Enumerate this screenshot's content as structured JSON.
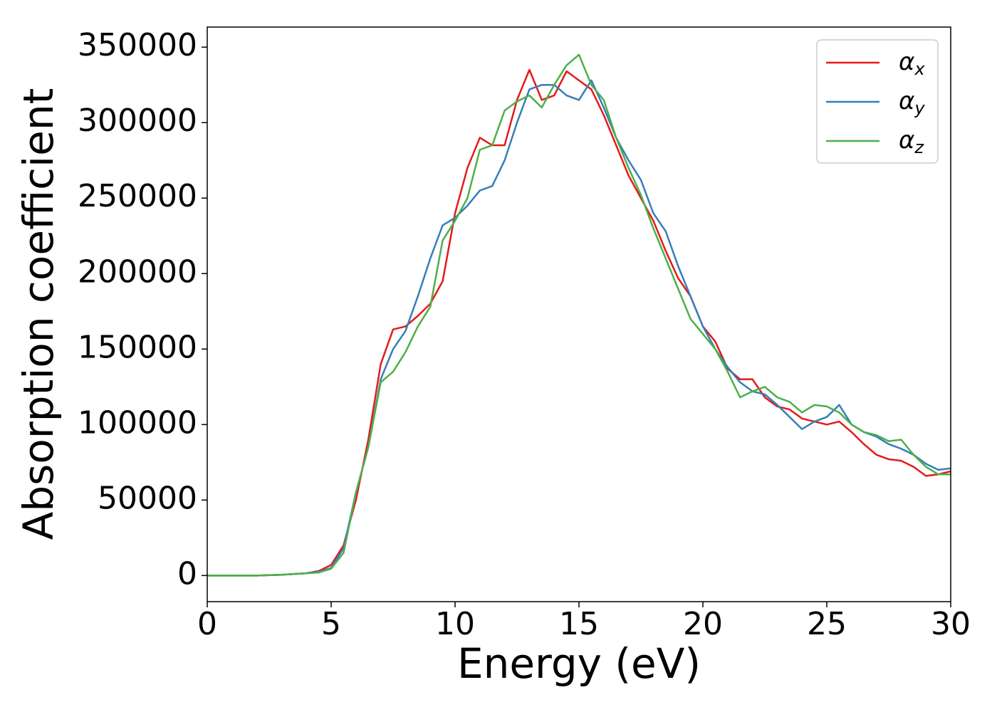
{
  "chart_data": {
    "type": "line",
    "xlabel": "Energy (eV)",
    "ylabel": "Absorption coefficient",
    "x": [
      0,
      1,
      2,
      3,
      4,
      4.5,
      5,
      5.5,
      6,
      6.5,
      7,
      7.5,
      8,
      8.5,
      9,
      9.5,
      10,
      10.5,
      11,
      11.5,
      12,
      12.5,
      13,
      13.5,
      14,
      14.5,
      15,
      15.5,
      16,
      16.5,
      17,
      17.5,
      18,
      18.5,
      19,
      19.5,
      20,
      20.5,
      21,
      21.5,
      22,
      22.5,
      23,
      23.5,
      24,
      24.5,
      25,
      25.5,
      26,
      26.5,
      27,
      27.5,
      28,
      28.5,
      29,
      29.5,
      30
    ],
    "series": [
      {
        "name": "αx",
        "color": "#e41a1c",
        "values": [
          0,
          0,
          0,
          500,
          1500,
          3000,
          7000,
          20000,
          50000,
          90000,
          140000,
          163000,
          165000,
          172000,
          180000,
          195000,
          240000,
          270000,
          290000,
          285000,
          285000,
          315000,
          335000,
          315000,
          318000,
          334000,
          328000,
          322000,
          305000,
          285000,
          265000,
          250000,
          235000,
          215000,
          197000,
          185000,
          165000,
          155000,
          137000,
          130000,
          130000,
          118000,
          112000,
          110000,
          104000,
          102000,
          100000,
          102000,
          95000,
          87000,
          80000,
          77000,
          76000,
          72000,
          66000,
          67000,
          69000
        ]
      },
      {
        "name": "αy",
        "color": "#377eb8",
        "values": [
          0,
          0,
          0,
          500,
          1500,
          2500,
          5000,
          18000,
          55000,
          85000,
          130000,
          150000,
          162000,
          185000,
          210000,
          232000,
          237000,
          245000,
          255000,
          258000,
          275000,
          300000,
          322000,
          325000,
          325000,
          318000,
          315000,
          328000,
          310000,
          290000,
          275000,
          262000,
          240000,
          228000,
          205000,
          185000,
          165000,
          150000,
          138000,
          128000,
          122000,
          120000,
          113000,
          105000,
          97000,
          102000,
          105000,
          113000,
          100000,
          95000,
          92000,
          87000,
          84000,
          80000,
          74000,
          70000,
          71000
        ]
      },
      {
        "name": "αz",
        "color": "#4daf4a",
        "values": [
          0,
          0,
          0,
          500,
          1500,
          2000,
          4500,
          15000,
          55000,
          85000,
          128000,
          135000,
          148000,
          165000,
          178000,
          222000,
          235000,
          250000,
          282000,
          285000,
          308000,
          314000,
          318000,
          310000,
          325000,
          338000,
          345000,
          325000,
          315000,
          290000,
          270000,
          252000,
          230000,
          210000,
          190000,
          170000,
          160000,
          150000,
          135000,
          118000,
          122000,
          125000,
          118000,
          115000,
          108000,
          113000,
          112000,
          108000,
          100000,
          95000,
          93000,
          89000,
          90000,
          80000,
          72000,
          67000,
          67000
        ]
      }
    ],
    "xlim": [
      0,
      30
    ],
    "xticks": [
      0,
      5,
      10,
      15,
      20,
      25,
      30
    ],
    "ylim": [
      -17300,
      363300
    ],
    "yticks": [
      0,
      50000,
      100000,
      150000,
      200000,
      250000,
      300000,
      350000
    ],
    "legend": "upper right",
    "grid": false
  }
}
